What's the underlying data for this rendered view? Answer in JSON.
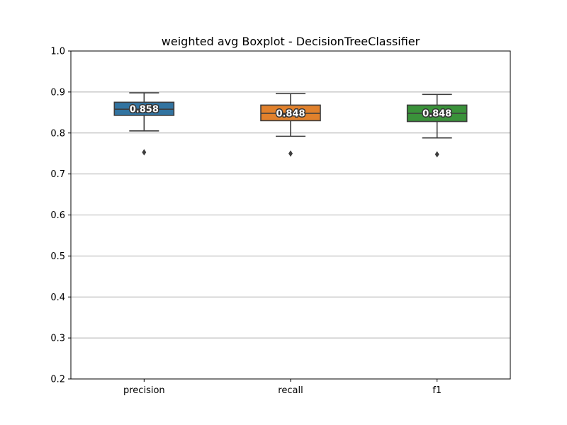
{
  "chart_data": {
    "type": "boxplot",
    "title": "weighted avg Boxplot - DecisionTreeClassifier",
    "xlabel": "",
    "ylabel": "",
    "ylim": [
      0.2,
      1.0
    ],
    "yticks": [
      "0.2",
      "0.3",
      "0.4",
      "0.5",
      "0.6",
      "0.7",
      "0.8",
      "0.9",
      "1.0"
    ],
    "grid": "horizontal",
    "categories": [
      "precision",
      "recall",
      "f1"
    ],
    "boxes": [
      {
        "category": "precision",
        "color": "#3274a1",
        "whisker_low": 0.805,
        "q1": 0.843,
        "median": 0.858,
        "q3": 0.875,
        "whisker_high": 0.898,
        "outliers": [
          0.753
        ],
        "median_label": "0.858"
      },
      {
        "category": "recall",
        "color": "#e1812c",
        "whisker_low": 0.792,
        "q1": 0.83,
        "median": 0.848,
        "q3": 0.868,
        "whisker_high": 0.896,
        "outliers": [
          0.75
        ],
        "median_label": "0.848"
      },
      {
        "category": "f1",
        "color": "#3a923a",
        "whisker_low": 0.788,
        "q1": 0.828,
        "median": 0.848,
        "q3": 0.868,
        "whisker_high": 0.894,
        "outliers": [
          0.748
        ],
        "median_label": "0.848"
      }
    ]
  }
}
